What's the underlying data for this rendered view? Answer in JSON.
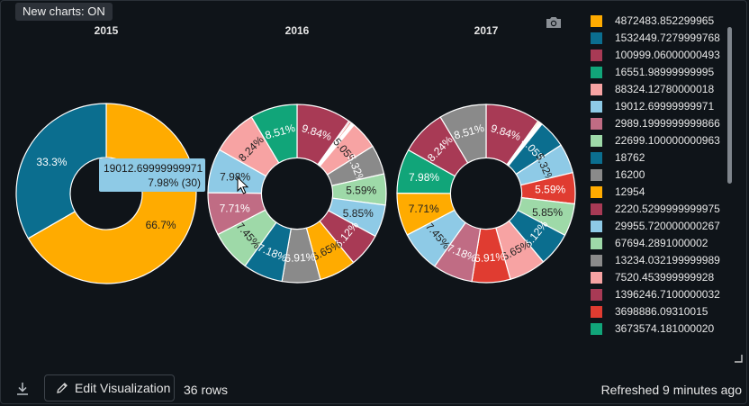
{
  "badge": {
    "label": "New charts: ON"
  },
  "camera_icon": "camera-icon",
  "chart_data": {
    "type": "pie",
    "hole": 0.4,
    "charts": [
      {
        "title": "2015",
        "slices": [
          {
            "value": 66.7,
            "label": "66.7%",
            "color": "#ffab00"
          },
          {
            "value": 33.3,
            "label": "33.3%",
            "color": "#0b6e8f"
          }
        ]
      },
      {
        "title": "2016",
        "slices": [
          {
            "value": 9.84,
            "label": "9.84%",
            "color": "#a83a55"
          },
          {
            "value": 0.25,
            "label": "",
            "color": "#a83a55"
          },
          {
            "value": 0.3,
            "label": "",
            "color": "#e03c31"
          },
          {
            "value": 0.22,
            "label": "",
            "color": "#9ed9a8"
          },
          {
            "value": 0.2,
            "label": "",
            "color": "#ffab00"
          },
          {
            "value": 0.18,
            "label": "",
            "color": "#f7a3a3"
          },
          {
            "value": 5.05,
            "label": "5.05%",
            "color": "#f7a3a3"
          },
          {
            "value": 5.32,
            "label": "5.32%",
            "color": "#8a8a8a"
          },
          {
            "value": 5.59,
            "label": "5.59%",
            "color": "#9ed9a8"
          },
          {
            "value": 5.85,
            "label": "5.85%",
            "color": "#8ecae6"
          },
          {
            "value": 6.12,
            "label": "6.12%",
            "color": "#a83a55"
          },
          {
            "value": 6.65,
            "label": "6.65%",
            "color": "#ffab00"
          },
          {
            "value": 6.91,
            "label": "6.91%",
            "color": "#8a8a8a"
          },
          {
            "value": 7.18,
            "label": "7.18%",
            "color": "#0b6e8f"
          },
          {
            "value": 7.45,
            "label": "7.45%",
            "color": "#9ed9a8"
          },
          {
            "value": 7.71,
            "label": "7.71%",
            "color": "#c06c84"
          },
          {
            "value": 7.98,
            "label": "7.98%",
            "color": "#8ecae6"
          },
          {
            "value": 8.24,
            "label": "8.24%",
            "color": "#f7a3a3"
          },
          {
            "value": 8.51,
            "label": "8.51%",
            "color": "#11a579"
          }
        ]
      },
      {
        "title": "2017",
        "slices": [
          {
            "value": 9.84,
            "label": "9.84%",
            "color": "#a83a55"
          },
          {
            "value": 0.25,
            "label": "",
            "color": "#ffab00"
          },
          {
            "value": 0.22,
            "label": "",
            "color": "#9ed9a8"
          },
          {
            "value": 0.2,
            "label": "",
            "color": "#f7a3a3"
          },
          {
            "value": 0.18,
            "label": "",
            "color": "#8a8a8a"
          },
          {
            "value": 5.05,
            "label": "5.05%",
            "color": "#0b6e8f"
          },
          {
            "value": 5.32,
            "label": "5.32%",
            "color": "#8ecae6"
          },
          {
            "value": 5.59,
            "label": "5.59%",
            "color": "#e03c31"
          },
          {
            "value": 5.85,
            "label": "5.85%",
            "color": "#9ed9a8"
          },
          {
            "value": 6.12,
            "label": "6.12%",
            "color": "#0b6e8f"
          },
          {
            "value": 6.65,
            "label": "6.65%",
            "color": "#f7a3a3"
          },
          {
            "value": 6.91,
            "label": "6.91%",
            "color": "#e03c31"
          },
          {
            "value": 7.18,
            "label": "7.18%",
            "color": "#c06c84"
          },
          {
            "value": 7.45,
            "label": "7.45%",
            "color": "#8ecae6"
          },
          {
            "value": 7.71,
            "label": "7.71%",
            "color": "#ffab00"
          },
          {
            "value": 7.98,
            "label": "7.98%",
            "color": "#11a579"
          },
          {
            "value": 8.24,
            "label": "8.24%",
            "color": "#a83a55"
          },
          {
            "value": 8.51,
            "label": "8.51%",
            "color": "#8a8a8a"
          }
        ]
      }
    ],
    "legend": {
      "placement": "right",
      "items": [
        {
          "label": "4872483.852299965",
          "color": "#ffab00"
        },
        {
          "label": "1532449.7279999768",
          "color": "#0b6e8f"
        },
        {
          "label": "100999.06000000493",
          "color": "#a83a55"
        },
        {
          "label": "16551.98999999995",
          "color": "#11a579"
        },
        {
          "label": "88324.12780000018",
          "color": "#f7a3a3"
        },
        {
          "label": "19012.69999999971",
          "color": "#8ecae6"
        },
        {
          "label": "2989.1999999999866",
          "color": "#c06c84"
        },
        {
          "label": "22699.100000000963",
          "color": "#9ed9a8"
        },
        {
          "label": "18762",
          "color": "#0b6e8f"
        },
        {
          "label": "16200",
          "color": "#8a8a8a"
        },
        {
          "label": "12954",
          "color": "#ffab00"
        },
        {
          "label": "2220.5299999999975",
          "color": "#a83a55"
        },
        {
          "label": "29955.720000000267",
          "color": "#8ecae6"
        },
        {
          "label": "67694.2891000002",
          "color": "#9ed9a8"
        },
        {
          "label": "13234.032199999989",
          "color": "#8a8a8a"
        },
        {
          "label": "7520.453999999928",
          "color": "#f7a3a3"
        },
        {
          "label": "1396246.7100000032",
          "color": "#a83a55"
        },
        {
          "label": "3698886.09310015",
          "color": "#e03c31"
        },
        {
          "label": "3673574.181000020",
          "color": "#11a579"
        }
      ]
    }
  },
  "tooltip": {
    "line1": "19012.69999999971",
    "line2": "7.98% (30)"
  },
  "footer": {
    "edit_label": "Edit Visualization",
    "rows": "36 rows",
    "refreshed": "Refreshed 9 minutes ago"
  }
}
